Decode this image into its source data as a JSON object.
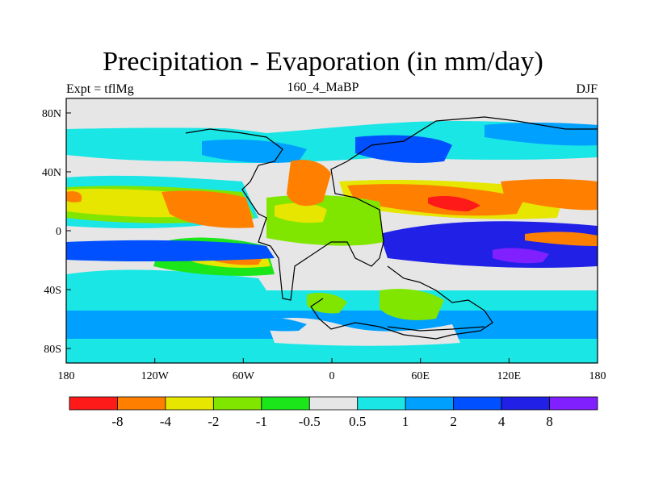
{
  "map": {
    "title": "Precipitation - Evaporation (in mm/day)",
    "left_label": "Expt = tflMg",
    "center_label": "160_4_MaBP",
    "right_label": "DJF",
    "lat_ticks": [
      "80N",
      "40N",
      "0",
      "40S",
      "80S"
    ],
    "lon_ticks": [
      "180",
      "120W",
      "60W",
      "0",
      "60E",
      "120E",
      "180"
    ]
  },
  "colorbar": {
    "colors": [
      "#ff1a1a",
      "#ff8000",
      "#e6e600",
      "#80e600",
      "#1ae61a",
      "#e6e6e6",
      "#1ae6e6",
      "#00a0ff",
      "#0050ff",
      "#2020e6",
      "#8020ff"
    ],
    "labels": [
      "-8",
      "-4",
      "-2",
      "-1",
      "-0.5",
      "0.5",
      "1",
      "2",
      "4",
      "8"
    ]
  }
}
